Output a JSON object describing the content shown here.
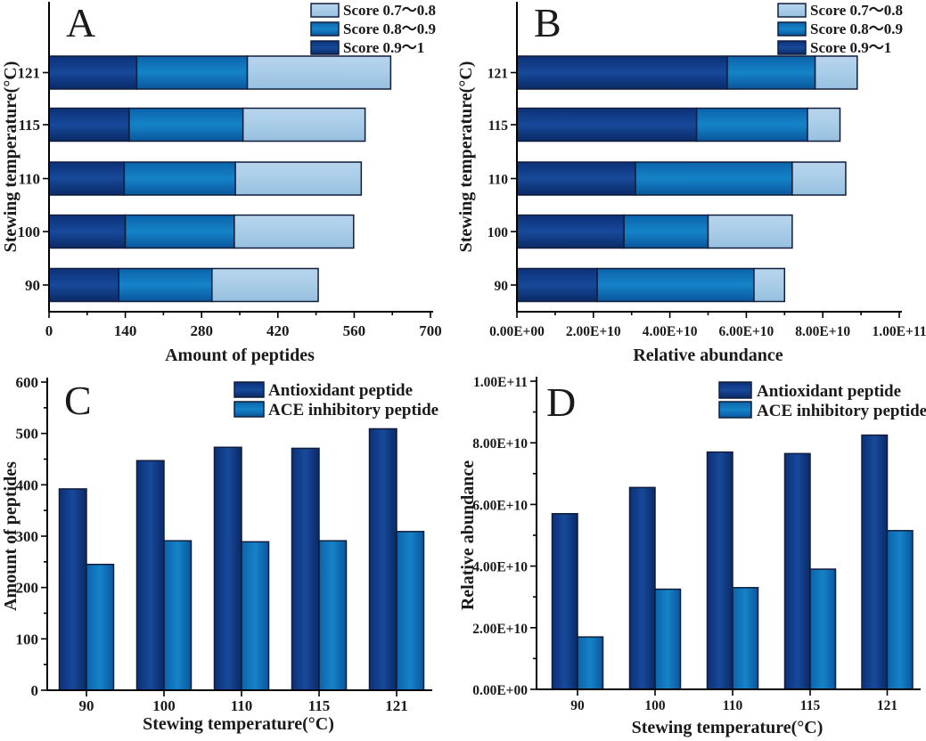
{
  "figure": {
    "background": "#ffffff",
    "palette": {
      "dark": {
        "top": "#0c3078",
        "mid": "#17499a",
        "bottom": "#0a2a66"
      },
      "medium": {
        "top": "#0c63aa",
        "mid": "#1583c8",
        "bottom": "#0a569c"
      },
      "light": {
        "top": "#b8d4ec",
        "mid": "#a9cde8",
        "bottom": "#97bfdf"
      },
      "outline": "#101d3a",
      "axis": "#000000",
      "text": "#1a1a1a"
    }
  },
  "chart_data": [
    {
      "id": "A",
      "type": "bar",
      "orientation": "horizontal",
      "stacked": true,
      "panel_label": "A",
      "categories": [
        "90",
        "100",
        "110",
        "115",
        "121"
      ],
      "series": [
        {
          "name": "Score 0.9～1",
          "color_key": "dark",
          "values": [
            128,
            140,
            138,
            147,
            161
          ]
        },
        {
          "name": "Score 0.8～0.9",
          "color_key": "medium",
          "values": [
            171,
            200,
            204,
            209,
            203
          ]
        },
        {
          "name": "Score 0.7～0.8",
          "color_key": "light",
          "values": [
            195,
            219,
            231,
            224,
            263
          ]
        }
      ],
      "legend": [
        {
          "label": "Score 0.7～0.8",
          "color_key": "light"
        },
        {
          "label": "Score 0.8～0.9",
          "color_key": "medium"
        },
        {
          "label": "Score 0.9～1",
          "color_key": "dark"
        }
      ],
      "legend_position": "top-right",
      "grid": false,
      "xlabel": "Amount of peptides",
      "ylabel": "Stewing temperature(°C)",
      "xlim": [
        0,
        700
      ],
      "xticks": {
        "values": [
          0,
          140,
          280,
          420,
          560,
          700
        ],
        "labels": [
          "0",
          "140",
          "280",
          "420",
          "560",
          "700"
        ],
        "minor": [
          70,
          210,
          350,
          490,
          630
        ]
      }
    },
    {
      "id": "B",
      "type": "bar",
      "orientation": "horizontal",
      "stacked": true,
      "panel_label": "B",
      "categories": [
        "90",
        "100",
        "110",
        "115",
        "121"
      ],
      "series": [
        {
          "name": "Score 0.9～1",
          "color_key": "dark",
          "values": [
            21000000000.0,
            28000000000.0,
            31000000000.0,
            47000000000.0,
            55000000000.0
          ]
        },
        {
          "name": "Score 0.8～0.9",
          "color_key": "medium",
          "values": [
            41000000000.0,
            22000000000.0,
            41000000000.0,
            29000000000.0,
            23000000000.0
          ]
        },
        {
          "name": "Score 0.7～0.8",
          "color_key": "light",
          "values": [
            8000000000.0,
            22000000000.0,
            14000000000.0,
            8500000000.0,
            11000000000.0
          ]
        }
      ],
      "legend": [
        {
          "label": "Score 0.7～0.8",
          "color_key": "light"
        },
        {
          "label": "Score 0.8～0.9",
          "color_key": "medium"
        },
        {
          "label": "Score 0.9～1",
          "color_key": "dark"
        }
      ],
      "legend_position": "top-right",
      "grid": false,
      "xlabel": "Relative abundance",
      "ylabel": "Stewing temperature(°C)",
      "xlim": [
        0,
        100000000000.0
      ],
      "xticks": {
        "values": [
          0,
          20000000000.0,
          40000000000.0,
          60000000000.0,
          80000000000.0,
          100000000000.0
        ],
        "labels": [
          "0.00E+00",
          "2.00E+10",
          "4.00E+10",
          "6.00E+10",
          "8.00E+10",
          "1.00E+11"
        ],
        "minor": [
          10000000000.0,
          30000000000.0,
          50000000000.0,
          70000000000.0,
          90000000000.0
        ]
      }
    },
    {
      "id": "C",
      "type": "bar",
      "orientation": "vertical",
      "stacked": false,
      "panel_label": "C",
      "categories": [
        "90",
        "100",
        "110",
        "115",
        "121"
      ],
      "series": [
        {
          "name": "Antioxidant peptide",
          "color_key": "dark",
          "values": [
            392,
            447,
            473,
            471,
            509
          ]
        },
        {
          "name": "ACE inhibitory peptide",
          "color_key": "medium",
          "values": [
            245,
            291,
            289,
            291,
            309
          ]
        }
      ],
      "legend": [
        {
          "label": "Antioxidant peptide",
          "color_key": "dark"
        },
        {
          "label": "ACE inhibitory peptide",
          "color_key": "medium"
        }
      ],
      "legend_position": "top-right",
      "grid": false,
      "xlabel": "Stewing temperature(°C)",
      "ylabel": "Amount of peptides",
      "ylim": [
        0,
        600
      ],
      "yticks": {
        "values": [
          0,
          100,
          200,
          300,
          400,
          500,
          600
        ],
        "labels": [
          "0",
          "100",
          "200",
          "300",
          "400",
          "500",
          "600"
        ],
        "minor": [
          50,
          150,
          250,
          350,
          450,
          550
        ]
      }
    },
    {
      "id": "D",
      "type": "bar",
      "orientation": "vertical",
      "stacked": false,
      "panel_label": "D",
      "categories": [
        "90",
        "100",
        "110",
        "115",
        "121"
      ],
      "series": [
        {
          "name": "Antioxidant peptide",
          "color_key": "dark",
          "values": [
            57000000000.0,
            65500000000.0,
            77000000000.0,
            76500000000.0,
            82500000000.0
          ]
        },
        {
          "name": "ACE inhibitory peptide",
          "color_key": "medium",
          "values": [
            17000000000.0,
            32500000000.0,
            33000000000.0,
            39000000000.0,
            51500000000.0
          ]
        }
      ],
      "legend": [
        {
          "label": "Antioxidant peptide",
          "color_key": "dark"
        },
        {
          "label": "ACE inhibitory peptide",
          "color_key": "medium"
        }
      ],
      "legend_position": "top-right",
      "grid": false,
      "xlabel": "Stewing temperature(°C)",
      "ylabel": "Relative abundance",
      "ylim": [
        0,
        100000000000.0
      ],
      "yticks": {
        "values": [
          0,
          20000000000.0,
          40000000000.0,
          60000000000.0,
          80000000000.0,
          100000000000.0
        ],
        "labels": [
          "0.00E+00",
          "2.00E+10",
          "4.00E+10",
          "6.00E+10",
          "8.00E+10",
          "1.00E+11"
        ],
        "minor": [
          10000000000.0,
          30000000000.0,
          50000000000.0,
          70000000000.0,
          90000000000.0
        ]
      }
    }
  ]
}
